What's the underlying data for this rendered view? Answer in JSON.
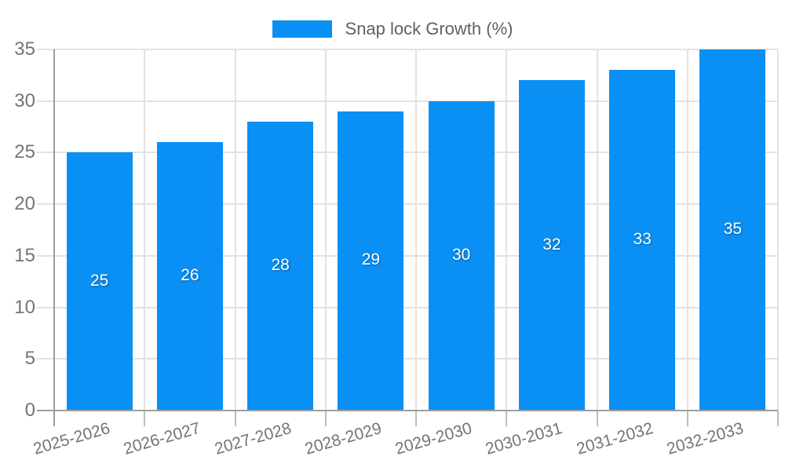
{
  "legend": {
    "series_label": "Snap lock Growth (%)"
  },
  "chart_data": {
    "type": "bar",
    "title": "",
    "xlabel": "",
    "ylabel": "",
    "categories": [
      "2025-2026",
      "2026-2027",
      "2027-2028",
      "2028-2029",
      "2029-2030",
      "2030-2031",
      "2031-2032",
      "2032-2033"
    ],
    "series": [
      {
        "name": "Snap lock Growth (%)",
        "values": [
          25,
          26,
          28,
          29,
          30,
          32,
          33,
          35
        ]
      }
    ],
    "data_labels_shown": true,
    "ylim": [
      0,
      35
    ],
    "yticks": [
      0,
      5,
      10,
      15,
      20,
      25,
      30,
      35
    ],
    "grid": "on",
    "legend_position": "top-center",
    "colors": {
      "bar": "#0a8ff4",
      "bar_value_label": "#ffffff",
      "axis_text": "#757575",
      "legend_text": "#616161",
      "gridline": "#e2e2e2",
      "x_tick": "#bdbdbd",
      "axis_line": "#9e9e9e",
      "background": "#ffffff"
    }
  }
}
